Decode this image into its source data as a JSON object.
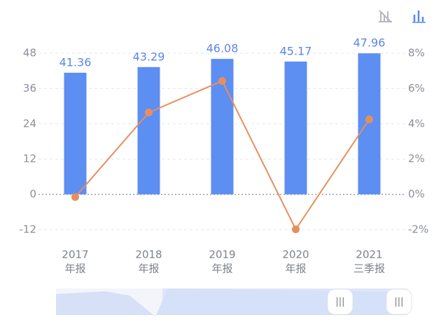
{
  "chart_data": {
    "type": "bar-line",
    "categories": [
      [
        "2017",
        "年报"
      ],
      [
        "2018",
        "年报"
      ],
      [
        "2019",
        "年报"
      ],
      [
        "2020",
        "年报"
      ],
      [
        "2021",
        "三季报"
      ]
    ],
    "series": [
      {
        "type": "bar",
        "color": "#5d8ef2",
        "values": [
          41.36,
          43.29,
          46.08,
          45.17,
          47.96
        ]
      },
      {
        "type": "line",
        "axis": "y2",
        "color": "#e88e5d",
        "values": [
          -0.15,
          4.64,
          6.43,
          -1.98,
          4.25
        ]
      }
    ],
    "ylim": [
      -12,
      48
    ],
    "yticks": [
      -12,
      0,
      12,
      24,
      36,
      48
    ],
    "y2lim": [
      -2,
      8
    ],
    "y2ticks": [
      {
        "value": -2,
        "label": "-2%"
      },
      {
        "value": 0,
        "label": "0%"
      },
      {
        "value": 2,
        "label": "2%"
      },
      {
        "value": 4,
        "label": "4%"
      },
      {
        "value": 6,
        "label": "6%"
      },
      {
        "value": 8,
        "label": "8%"
      }
    ],
    "grid": true
  }
}
